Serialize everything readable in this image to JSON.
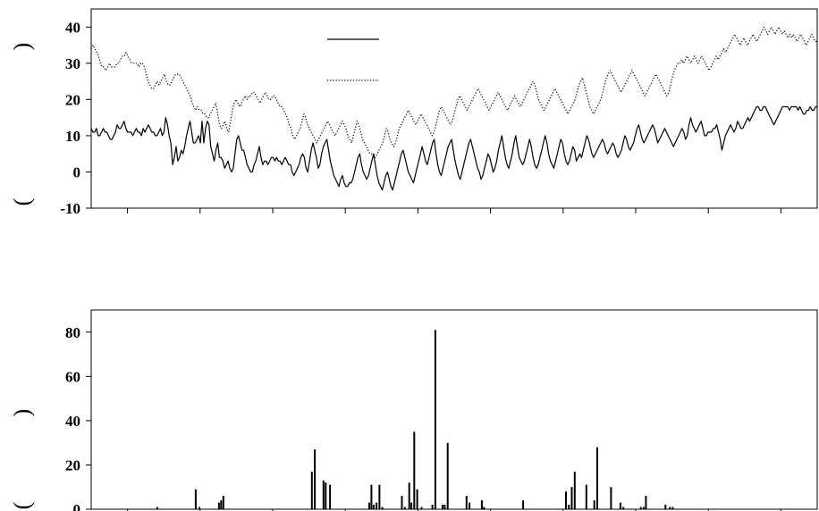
{
  "chart_data": [
    {
      "type": "line",
      "ylim": [
        -10,
        45
      ],
      "yticks": [
        -10,
        0,
        10,
        20,
        30,
        40
      ],
      "ylabel_glyphs": [
        ")",
        "("
      ],
      "x_tick_count": 10,
      "legend": {
        "placement": "top-center",
        "entries": [
          {
            "style": "solid"
          },
          {
            "style": "dotted"
          }
        ]
      },
      "series": [
        {
          "style": "solid",
          "color": "#000000",
          "values": [
            12,
            11,
            11,
            12,
            10,
            10,
            11,
            12,
            11,
            11,
            10,
            9,
            9,
            10,
            11,
            13,
            12,
            12,
            13,
            14,
            12,
            11,
            11,
            11,
            10,
            11,
            12,
            11,
            11,
            10,
            12,
            11,
            12,
            13,
            12,
            11,
            11,
            10,
            10,
            11,
            12,
            10,
            11,
            15,
            13,
            10,
            8,
            2,
            4,
            7,
            3,
            4,
            6,
            5,
            7,
            10,
            12,
            14,
            11,
            8,
            8,
            9,
            10,
            8,
            14,
            8,
            12,
            14,
            13,
            7,
            5,
            3,
            6,
            8,
            4,
            4,
            3,
            1,
            2,
            3,
            1,
            0,
            1,
            5,
            9,
            10,
            8,
            6,
            6,
            4,
            2,
            1,
            0,
            0,
            2,
            3,
            5,
            7,
            4,
            2,
            3,
            3,
            2,
            3,
            4,
            4,
            3,
            4,
            3,
            3,
            2,
            3,
            4,
            3,
            2,
            2,
            0,
            -1,
            0,
            1,
            2,
            4,
            5,
            4,
            1,
            0,
            3,
            6,
            8,
            6,
            4,
            1,
            2,
            5,
            7,
            8,
            9,
            6,
            3,
            1,
            -1,
            -2,
            -3,
            -4,
            -2,
            -1,
            -3,
            -4,
            -4,
            -3,
            -3,
            -2,
            0,
            2,
            4,
            5,
            2,
            0,
            -1,
            -2,
            -1,
            1,
            3,
            5,
            2,
            -1,
            -3,
            -4,
            -5,
            -3,
            -1,
            0,
            -2,
            -4,
            -5,
            -3,
            -1,
            1,
            3,
            5,
            6,
            4,
            2,
            0,
            -1,
            -2,
            -3,
            -1,
            1,
            3,
            5,
            7,
            5,
            3,
            2,
            4,
            6,
            8,
            9,
            5,
            2,
            0,
            -1,
            1,
            3,
            5,
            7,
            8,
            9,
            6,
            3,
            1,
            -1,
            -2,
            0,
            2,
            4,
            6,
            8,
            9,
            7,
            5,
            3,
            1,
            0,
            -2,
            -1,
            1,
            3,
            5,
            4,
            2,
            0,
            1,
            3,
            6,
            8,
            10,
            7,
            4,
            2,
            1,
            3,
            5,
            8,
            10,
            7,
            4,
            3,
            2,
            3,
            5,
            7,
            9,
            7,
            4,
            2,
            1,
            2,
            4,
            6,
            8,
            10,
            8,
            5,
            3,
            2,
            1,
            3,
            5,
            7,
            9,
            8,
            5,
            3,
            2,
            3,
            5,
            7,
            6,
            3,
            4,
            5,
            4,
            6,
            8,
            10,
            9,
            7,
            5,
            4,
            5,
            6,
            7,
            8,
            9,
            8,
            6,
            5,
            6,
            7,
            8,
            7,
            5,
            4,
            5,
            6,
            8,
            10,
            9,
            7,
            6,
            7,
            8,
            10,
            12,
            13,
            11,
            9,
            8,
            9,
            10,
            11,
            12,
            13,
            12,
            10,
            8,
            9,
            10,
            11,
            12,
            11,
            10,
            9,
            8,
            7,
            8,
            9,
            10,
            11,
            12,
            11,
            9,
            10,
            13,
            15,
            13,
            12,
            11,
            12,
            13,
            14,
            12,
            10,
            10,
            11,
            11,
            11,
            12,
            12,
            13,
            11,
            9,
            6,
            8,
            10,
            11,
            12,
            13,
            12,
            11,
            12,
            14,
            13,
            12,
            12,
            13,
            14,
            15,
            14,
            15,
            16,
            17,
            18,
            18,
            17,
            17,
            18,
            18,
            17,
            16,
            15,
            14,
            13,
            14,
            15,
            16,
            17,
            18,
            18,
            18,
            18,
            17,
            18,
            18,
            18,
            18,
            17,
            18,
            17,
            16,
            16,
            17,
            17,
            18,
            17,
            17,
            18,
            18
          ]
        },
        {
          "style": "dotted",
          "color": "#000000",
          "values": [
            34,
            35,
            34,
            33,
            32,
            30,
            29,
            29,
            28,
            29,
            30,
            29,
            29,
            29,
            30,
            30,
            31,
            32,
            32,
            33,
            32,
            31,
            30,
            30,
            30,
            30,
            29,
            30,
            30,
            29,
            27,
            25,
            24,
            23,
            23,
            24,
            25,
            24,
            25,
            26,
            27,
            25,
            24,
            24,
            25,
            26,
            27,
            27,
            27,
            26,
            25,
            24,
            23,
            22,
            21,
            19,
            18,
            17,
            18,
            17,
            17,
            16,
            16,
            15,
            15,
            16,
            17,
            18,
            19,
            16,
            13,
            12,
            13,
            14,
            12,
            11,
            14,
            17,
            19,
            20,
            19,
            18,
            19,
            20,
            21,
            20,
            21,
            21,
            22,
            22,
            21,
            20,
            19,
            20,
            21,
            22,
            21,
            20,
            20,
            21,
            21,
            20,
            19,
            18,
            18,
            17,
            16,
            15,
            13,
            12,
            10,
            9,
            10,
            11,
            12,
            14,
            16,
            15,
            13,
            12,
            11,
            10,
            9,
            8,
            9,
            10,
            11,
            12,
            13,
            14,
            13,
            12,
            11,
            10,
            11,
            12,
            13,
            14,
            13,
            12,
            10,
            9,
            8,
            10,
            12,
            14,
            13,
            11,
            9,
            8,
            7,
            6,
            5,
            5,
            4,
            4,
            5,
            6,
            7,
            8,
            10,
            12,
            11,
            9,
            8,
            7,
            8,
            10,
            12,
            13,
            14,
            15,
            16,
            17,
            16,
            15,
            14,
            13,
            14,
            15,
            16,
            15,
            14,
            13,
            12,
            11,
            10,
            11,
            13,
            15,
            17,
            18,
            17,
            16,
            15,
            14,
            13,
            14,
            16,
            18,
            20,
            21,
            20,
            19,
            18,
            17,
            18,
            19,
            20,
            21,
            22,
            23,
            22,
            21,
            20,
            19,
            18,
            17,
            18,
            19,
            20,
            21,
            22,
            21,
            20,
            19,
            18,
            17,
            18,
            19,
            20,
            21,
            20,
            19,
            18,
            19,
            20,
            21,
            22,
            23,
            24,
            25,
            24,
            22,
            20,
            19,
            18,
            17,
            18,
            19,
            20,
            21,
            22,
            23,
            22,
            21,
            20,
            19,
            18,
            17,
            16,
            17,
            18,
            19,
            20,
            22,
            24,
            25,
            26,
            24,
            22,
            20,
            18,
            17,
            16,
            17,
            18,
            19,
            20,
            22,
            24,
            26,
            27,
            28,
            27,
            26,
            25,
            24,
            23,
            22,
            23,
            24,
            25,
            26,
            27,
            28,
            27,
            26,
            25,
            24,
            23,
            22,
            21,
            22,
            23,
            24,
            25,
            26,
            27,
            26,
            25,
            24,
            23,
            22,
            21,
            22,
            24,
            26,
            28,
            29,
            30,
            30,
            31,
            30,
            31,
            32,
            31,
            30,
            31,
            32,
            31,
            30,
            31,
            32,
            31,
            30,
            29,
            28,
            29,
            30,
            31,
            32,
            31,
            32,
            33,
            34,
            33,
            34,
            35,
            36,
            37,
            38,
            37,
            36,
            35,
            36,
            37,
            36,
            35,
            36,
            37,
            38,
            37,
            36,
            37,
            38,
            39,
            40,
            39,
            38,
            39,
            40,
            39,
            38,
            39,
            40,
            39,
            38,
            39,
            38,
            37,
            38,
            37,
            38,
            37,
            36,
            37,
            38,
            37,
            36,
            35,
            36,
            37,
            38,
            37,
            36,
            36
          ]
        }
      ]
    },
    {
      "type": "bar",
      "ylim": [
        0,
        90
      ],
      "yticks": [
        0,
        20,
        40,
        60,
        80
      ],
      "ylabel_glyphs": [
        ")",
        "("
      ],
      "x_tick_count": 10,
      "bars": [
        {
          "x": 0.091,
          "v": 1
        },
        {
          "x": 0.144,
          "v": 9
        },
        {
          "x": 0.149,
          "v": 1
        },
        {
          "x": 0.176,
          "v": 3
        },
        {
          "x": 0.179,
          "v": 4
        },
        {
          "x": 0.182,
          "v": 6
        },
        {
          "x": 0.304,
          "v": 17
        },
        {
          "x": 0.308,
          "v": 27
        },
        {
          "x": 0.32,
          "v": 13
        },
        {
          "x": 0.323,
          "v": 12
        },
        {
          "x": 0.329,
          "v": 11
        },
        {
          "x": 0.383,
          "v": 3
        },
        {
          "x": 0.386,
          "v": 11
        },
        {
          "x": 0.389,
          "v": 2
        },
        {
          "x": 0.393,
          "v": 3
        },
        {
          "x": 0.397,
          "v": 11
        },
        {
          "x": 0.401,
          "v": 1
        },
        {
          "x": 0.428,
          "v": 6
        },
        {
          "x": 0.432,
          "v": 1
        },
        {
          "x": 0.438,
          "v": 12
        },
        {
          "x": 0.441,
          "v": 3
        },
        {
          "x": 0.445,
          "v": 35
        },
        {
          "x": 0.449,
          "v": 9
        },
        {
          "x": 0.455,
          "v": 1
        },
        {
          "x": 0.47,
          "v": 2
        },
        {
          "x": 0.474,
          "v": 81
        },
        {
          "x": 0.484,
          "v": 2
        },
        {
          "x": 0.487,
          "v": 2
        },
        {
          "x": 0.491,
          "v": 30
        },
        {
          "x": 0.517,
          "v": 6
        },
        {
          "x": 0.521,
          "v": 3
        },
        {
          "x": 0.538,
          "v": 4
        },
        {
          "x": 0.541,
          "v": 1
        },
        {
          "x": 0.595,
          "v": 4
        },
        {
          "x": 0.654,
          "v": 8
        },
        {
          "x": 0.658,
          "v": 2
        },
        {
          "x": 0.662,
          "v": 10
        },
        {
          "x": 0.666,
          "v": 17
        },
        {
          "x": 0.682,
          "v": 11
        },
        {
          "x": 0.693,
          "v": 4
        },
        {
          "x": 0.697,
          "v": 28
        },
        {
          "x": 0.716,
          "v": 10
        },
        {
          "x": 0.729,
          "v": 3
        },
        {
          "x": 0.733,
          "v": 1
        },
        {
          "x": 0.757,
          "v": 1
        },
        {
          "x": 0.761,
          "v": 1
        },
        {
          "x": 0.764,
          "v": 6
        },
        {
          "x": 0.791,
          "v": 2
        },
        {
          "x": 0.797,
          "v": 1
        },
        {
          "x": 0.801,
          "v": 1
        }
      ]
    }
  ]
}
